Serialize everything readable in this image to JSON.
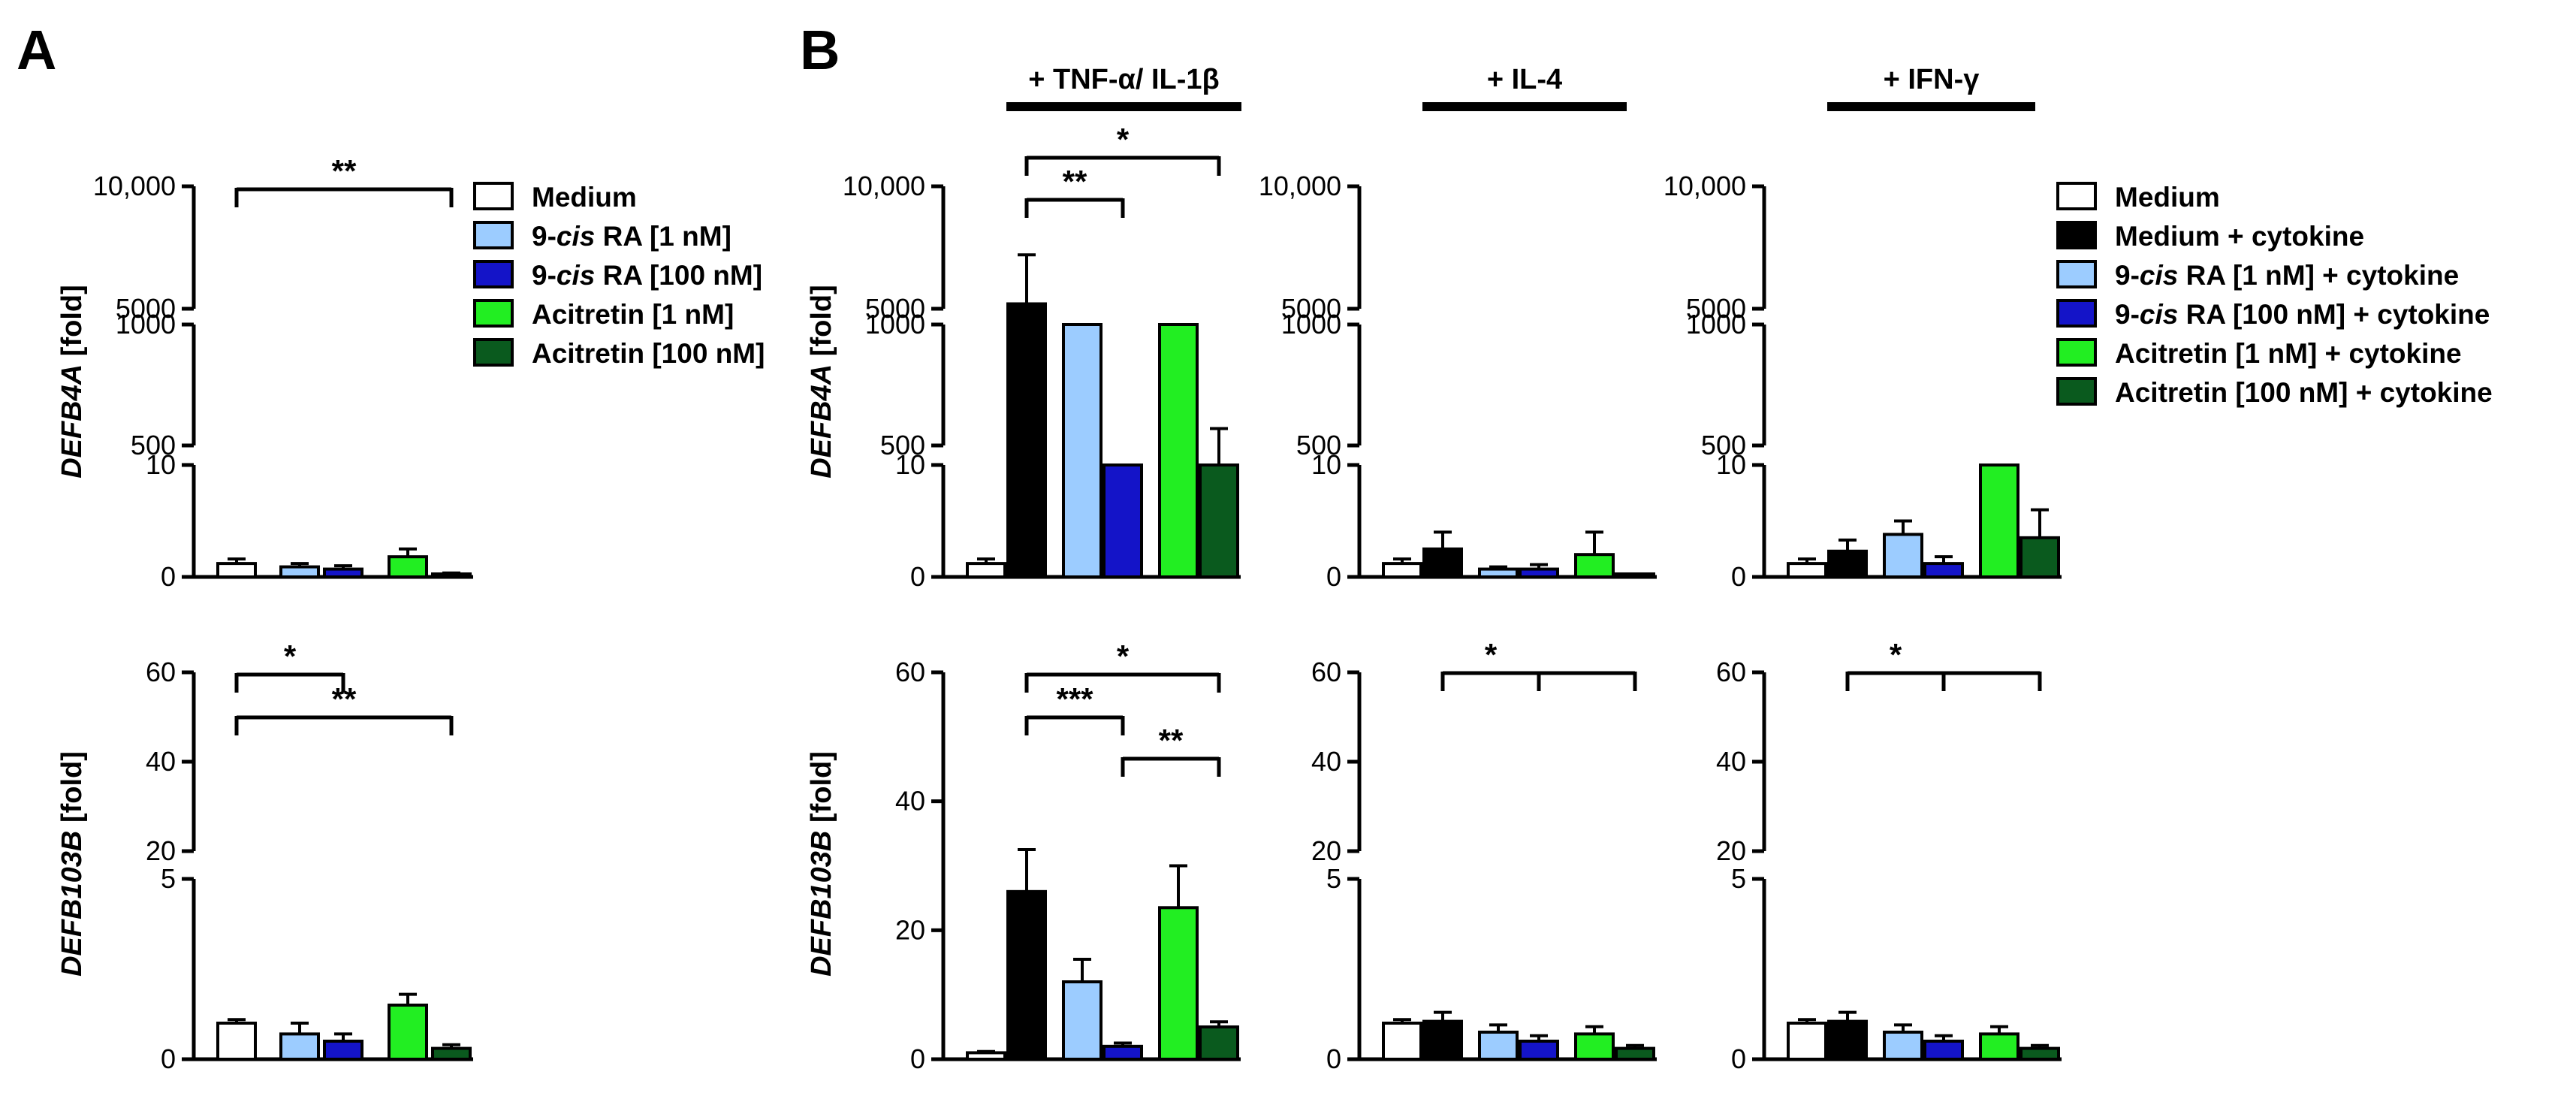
{
  "panel_labels": {
    "a": "A",
    "b": "B"
  },
  "colors": {
    "medium": "#ffffff",
    "medium_cytokine": "#000000",
    "cis_1": "#9cccff",
    "cis_100": "#1414c8",
    "acitretin_1": "#22ee22",
    "acitretin_100": "#0a5a1e"
  },
  "gene_labels": {
    "defb4a": "DEFB4A",
    "defb103b": "DEFB103B",
    "unit": " [fold]"
  },
  "ticks": {
    "defb4a": [
      "10,000",
      "5000",
      "1000",
      "500",
      "10",
      "0"
    ],
    "defb103b": [
      "60",
      "40",
      "20",
      "5",
      "0"
    ]
  },
  "headers": [
    "+ TNF-α/ IL-1β",
    "+ IL-4",
    "+ IFN-γ"
  ],
  "legend_a": [
    {
      "pre": "Medium",
      "ital": "",
      "post": "",
      "color": "#ffffff"
    },
    {
      "pre": "9-",
      "ital": "cis",
      "post": " RA [1 nM]",
      "color": "#9cccff"
    },
    {
      "pre": "9-",
      "ital": "cis",
      "post": " RA [100 nM]",
      "color": "#1414c8"
    },
    {
      "pre": "Acitretin [1 nM]",
      "ital": "",
      "post": "",
      "color": "#22ee22"
    },
    {
      "pre": "Acitretin [100 nM]",
      "ital": "",
      "post": "",
      "color": "#0a5a1e"
    }
  ],
  "legend_b": [
    {
      "pre": "Medium",
      "ital": "",
      "post": "",
      "color": "#ffffff"
    },
    {
      "pre": "Medium + cytokine",
      "ital": "",
      "post": "",
      "color": "#000000"
    },
    {
      "pre": "9-",
      "ital": "cis",
      "post": " RA [1 nM] + cytokine",
      "color": "#9cccff"
    },
    {
      "pre": "9-",
      "ital": "cis",
      "post": " RA [100 nM] + cytokine",
      "color": "#1414c8"
    },
    {
      "pre": "Acitretin [1 nM] + cytokine",
      "ital": "",
      "post": "",
      "color": "#22ee22"
    },
    {
      "pre": "Acitretin [100 nM] + cytokine",
      "ital": "",
      "post": "",
      "color": "#0a5a1e"
    }
  ],
  "chart_data": [
    {
      "id": "A-DEFB4A",
      "panel": "A",
      "type": "bar",
      "gene": "DEFB4A",
      "unit": "fold",
      "axis": "broken",
      "y_segments": [
        [
          0,
          10
        ],
        [
          500,
          1000
        ],
        [
          5000,
          10000
        ]
      ],
      "categories": [
        "Medium",
        "9-cis RA [1 nM]",
        "9-cis RA [100 nM]",
        "Acitretin [1 nM]",
        "Acitretin [100 nM]"
      ],
      "values": [
        1.2,
        0.9,
        0.7,
        1.8,
        0.25
      ],
      "errors": [
        0.4,
        0.3,
        0.3,
        0.7,
        0.1
      ],
      "significance": [
        {
          "from": 0,
          "to": 4,
          "label": "**",
          "level": 0
        }
      ]
    },
    {
      "id": "B-DEFB4A-TNF",
      "panel": "B",
      "type": "bar",
      "gene": "DEFB4A",
      "unit": "fold",
      "axis": "broken",
      "stimulus": "+ TNF-α/ IL-1β",
      "y_segments": [
        [
          0,
          10
        ],
        [
          500,
          1000
        ],
        [
          5000,
          10000
        ]
      ],
      "categories": [
        "Medium",
        "Medium + cytokine",
        "9-cis RA [1 nM] + cytokine",
        "9-cis RA [100 nM] + cytokine",
        "Acitretin [1 nM] + cytokine",
        "Acitretin [100 nM] + cytokine"
      ],
      "values": [
        1.2,
        5200,
        2600,
        280,
        2200,
        420
      ],
      "errors": [
        0.4,
        2000,
        1400,
        60,
        550,
        150
      ],
      "significance": [
        {
          "from": 1,
          "to": 3,
          "label": "**",
          "level": 0
        },
        {
          "from": 1,
          "to": 5,
          "label": "*",
          "level": 1
        }
      ]
    },
    {
      "id": "B-DEFB4A-IL4",
      "panel": "B",
      "type": "bar",
      "gene": "DEFB4A",
      "unit": "fold",
      "axis": "broken",
      "stimulus": "+ IL-4",
      "y_segments": [
        [
          0,
          10
        ],
        [
          500,
          1000
        ],
        [
          5000,
          10000
        ]
      ],
      "categories": [
        "Medium",
        "Medium + cytokine",
        "9-cis RA [1 nM] + cytokine",
        "9-cis RA [100 nM] + cytokine",
        "Acitretin [1 nM] + cytokine",
        "Acitretin [100 nM] + cytokine"
      ],
      "values": [
        1.2,
        2.5,
        0.7,
        0.7,
        2.0,
        0.15
      ],
      "errors": [
        0.4,
        1.5,
        0.2,
        0.4,
        2.0,
        0.1
      ],
      "significance": []
    },
    {
      "id": "B-DEFB4A-IFN",
      "panel": "B",
      "type": "bar",
      "gene": "DEFB4A",
      "unit": "fold",
      "axis": "broken",
      "stimulus": "+ IFN-γ",
      "y_segments": [
        [
          0,
          10
        ],
        [
          500,
          1000
        ],
        [
          5000,
          10000
        ]
      ],
      "categories": [
        "Medium",
        "Medium + cytokine",
        "9-cis RA [1 nM] + cytokine",
        "9-cis RA [100 nM] + cytokine",
        "Acitretin [1 nM] + cytokine",
        "Acitretin [100 nM] + cytokine"
      ],
      "values": [
        1.2,
        2.3,
        3.8,
        1.2,
        350,
        3.5
      ],
      "errors": [
        0.4,
        1.0,
        1.2,
        0.6,
        70,
        2.5
      ],
      "significance": []
    },
    {
      "id": "A-DEFB103B",
      "panel": "A",
      "type": "bar",
      "gene": "DEFB103B",
      "unit": "fold",
      "axis": "broken",
      "y_segments": [
        [
          0,
          5
        ],
        [
          20,
          60
        ]
      ],
      "categories": [
        "Medium",
        "9-cis RA [1 nM]",
        "9-cis RA [100 nM]",
        "Acitretin [1 nM]",
        "Acitretin [100 nM]"
      ],
      "values": [
        1.0,
        0.7,
        0.5,
        1.5,
        0.3
      ],
      "errors": [
        0.1,
        0.3,
        0.2,
        0.3,
        0.1
      ],
      "significance": [
        {
          "from": 0,
          "to": 2,
          "label": "*",
          "level": 0
        },
        {
          "from": 0,
          "to": 4,
          "label": "**",
          "level": 1
        }
      ]
    },
    {
      "id": "B-DEFB103B-TNF",
      "panel": "B",
      "type": "bar",
      "gene": "DEFB103B",
      "unit": "fold",
      "axis": "linear",
      "y_segments": [
        [
          0,
          60
        ]
      ],
      "categories": [
        "Medium",
        "Medium + cytokine",
        "9-cis RA [1 nM] + cytokine",
        "9-cis RA [100 nM] + cytokine",
        "Acitretin [1 nM] + cytokine",
        "Acitretin [100 nM] + cytokine"
      ],
      "values": [
        1.0,
        26.0,
        12.0,
        2.0,
        23.5,
        5.0
      ],
      "errors": [
        0.2,
        6.5,
        3.5,
        0.5,
        6.5,
        0.8
      ],
      "significance": [
        {
          "from": 3,
          "to": 5,
          "label": "**",
          "level": 0
        },
        {
          "from": 1,
          "to": 3,
          "label": "***",
          "level": 1
        },
        {
          "from": 1,
          "to": 5,
          "label": "*",
          "level": 2
        }
      ]
    },
    {
      "id": "B-DEFB103B-IL4",
      "panel": "B",
      "type": "bar",
      "gene": "DEFB103B",
      "unit": "fold",
      "axis": "broken",
      "y_segments": [
        [
          0,
          5
        ],
        [
          20,
          60
        ]
      ],
      "categories": [
        "Medium",
        "Medium + cytokine",
        "9-cis RA [1 nM] + cytokine",
        "9-cis RA [100 nM] + cytokine",
        "Acitretin [1 nM] + cytokine",
        "Acitretin [100 nM] + cytokine"
      ],
      "values": [
        1.0,
        1.05,
        0.75,
        0.5,
        0.7,
        0.3
      ],
      "errors": [
        0.1,
        0.25,
        0.2,
        0.15,
        0.2,
        0.08
      ],
      "significance": [
        {
          "from": 1,
          "to": [
            3,
            5
          ],
          "label": "*",
          "level": 0
        }
      ]
    },
    {
      "id": "B-DEFB103B-IFN",
      "panel": "B",
      "type": "bar",
      "gene": "DEFB103B",
      "unit": "fold",
      "axis": "broken",
      "y_segments": [
        [
          0,
          5
        ],
        [
          20,
          60
        ]
      ],
      "categories": [
        "Medium",
        "Medium + cytokine",
        "9-cis RA [1 nM] + cytokine",
        "9-cis RA [100 nM] + cytokine",
        "Acitretin [1 nM] + cytokine",
        "Acitretin [100 nM] + cytokine"
      ],
      "values": [
        1.0,
        1.05,
        0.75,
        0.5,
        0.7,
        0.3
      ],
      "errors": [
        0.1,
        0.25,
        0.2,
        0.15,
        0.2,
        0.08
      ],
      "significance": [
        {
          "from": 1,
          "to": [
            3,
            5
          ],
          "label": "*",
          "level": 0
        }
      ]
    }
  ]
}
